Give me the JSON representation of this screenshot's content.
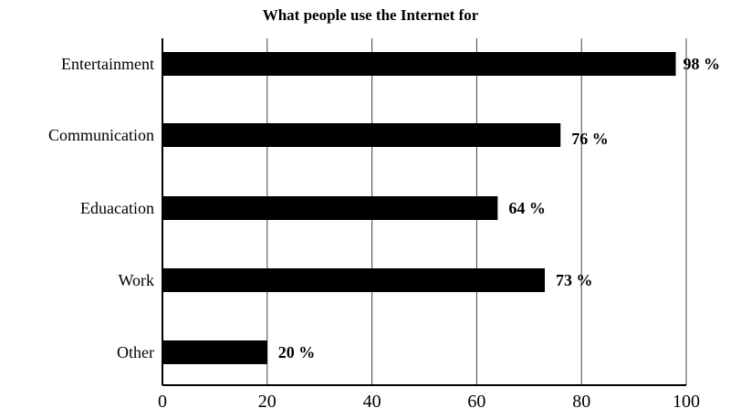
{
  "chart_data": {
    "type": "bar",
    "orientation": "horizontal",
    "title": "What people use the Internet for",
    "categories": [
      "Entertainment",
      "Communication",
      "Eduacation",
      "Work",
      "Other"
    ],
    "values": [
      98,
      76,
      64,
      73,
      20
    ],
    "value_labels": [
      "98 %",
      "76 %",
      "64 %",
      "73 %",
      "20 %"
    ],
    "xlim": [
      0,
      100
    ],
    "xticks": [
      0,
      20,
      40,
      60,
      80,
      100
    ],
    "xlabel": "",
    "ylabel": "",
    "grid": true,
    "bar_color": "#000000"
  }
}
